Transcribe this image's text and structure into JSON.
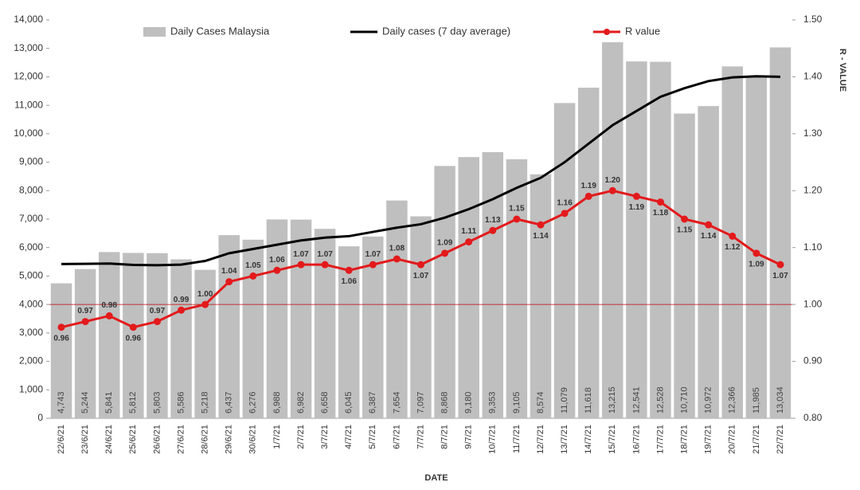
{
  "chart_data": {
    "type": "bar-line",
    "x_label": "DATE",
    "y2_label": "R - VALUE",
    "categories": [
      "22/6/21",
      "23/6/21",
      "24/6/21",
      "25/6/21",
      "26/6/21",
      "27/6/21",
      "28/6/21",
      "29/6/21",
      "30/6/21",
      "1/7/21",
      "2/7/21",
      "3/7/21",
      "4/7/21",
      "5/7/21",
      "6/7/21",
      "7/7/21",
      "8/7/21",
      "9/7/21",
      "10/7/21",
      "11/7/21",
      "12/7/21",
      "13/7/21",
      "14/7/21",
      "15/7/21",
      "16/7/21",
      "17/7/21",
      "18/7/21",
      "19/7/21",
      "20/7/21",
      "21/7/21",
      "22/7/21"
    ],
    "series": [
      {
        "name": "Daily Cases Malaysia",
        "kind": "bar",
        "color": "#bfbfbf",
        "values": [
          4743,
          5244,
          5841,
          5812,
          5803,
          5586,
          5218,
          6437,
          6276,
          6988,
          6982,
          6658,
          6045,
          6387,
          7654,
          7097,
          8868,
          9180,
          9353,
          9105,
          8574,
          11079,
          11618,
          13215,
          12541,
          12528,
          10710,
          10972,
          12366,
          11985,
          13034
        ],
        "value_labels": [
          "4,743",
          "5,244",
          "5,841",
          "5,812",
          "5,803",
          "5,586",
          "5,218",
          "6,437",
          "6,276",
          "6,988",
          "6,982",
          "6,658",
          "6,045",
          "6,387",
          "7,654",
          "7,097",
          "8,868",
          "9,180",
          "9,353",
          "9,105",
          "8,574",
          "11,079",
          "11,618",
          "13,215",
          "12,541",
          "12,528",
          "10,710",
          "10,972",
          "12,366",
          "11,985",
          "13,034"
        ]
      },
      {
        "name": "Daily cases (7 day average)",
        "kind": "line",
        "color": "#000000",
        "values": [
          5420,
          5430,
          5440,
          5390,
          5380,
          5400,
          5530,
          5800,
          5950,
          6100,
          6250,
          6350,
          6400,
          6550,
          6700,
          6820,
          7050,
          7350,
          7700,
          8100,
          8450,
          9000,
          9650,
          10300,
          10800,
          11300,
          11600,
          11850,
          11980,
          12020,
          12000
        ]
      },
      {
        "name": "R value",
        "kind": "line-marker",
        "color": "#e31a1c",
        "axis": "y2",
        "values": [
          0.96,
          0.97,
          0.98,
          0.96,
          0.97,
          0.99,
          1.0,
          1.04,
          1.05,
          1.06,
          1.07,
          1.07,
          1.06,
          1.07,
          1.08,
          1.07,
          1.09,
          1.11,
          1.13,
          1.15,
          1.14,
          1.16,
          1.19,
          1.2,
          1.19,
          1.18,
          1.15,
          1.14,
          1.12,
          1.09,
          1.07
        ],
        "value_labels": [
          "0.96",
          "0.97",
          "0.98",
          "0.96",
          "0.97",
          "0.99",
          "1.00",
          "1.04",
          "1.05",
          "1.06",
          "1.07",
          "1.07",
          "1.06",
          "1.07",
          "1.08",
          "1.07",
          "1.09",
          "1.11",
          "1.13",
          "1.15",
          "1.14",
          "1.16",
          "1.19",
          "1.20",
          "1.19",
          "1.18",
          "1.15",
          "1.14",
          "1.12",
          "1.09",
          "1.07"
        ]
      }
    ],
    "ylim": [
      0,
      14000
    ],
    "yticks": [
      0,
      {
        "value": 1000,
        "label": "1,000"
      },
      {
        "value": 2000,
        "label": "2,000"
      },
      {
        "value": 3000,
        "label": "3,000"
      },
      {
        "value": 4000,
        "label": "4,000"
      },
      {
        "value": 5000,
        "label": "5,000"
      },
      {
        "value": 6000,
        "label": "6,000"
      },
      {
        "value": 7000,
        "label": "7,000"
      },
      {
        "value": 8000,
        "label": "8,000"
      },
      {
        "value": 9000,
        "label": "9,000"
      },
      {
        "value": 10000,
        "label": "10,000"
      },
      {
        "value": 11000,
        "label": "11,000"
      },
      {
        "value": 12000,
        "label": "12,000"
      },
      {
        "value": 13000,
        "label": "13,000"
      },
      {
        "value": 14000,
        "label": "14,000"
      }
    ],
    "y2lim": [
      0.8,
      1.5
    ],
    "y2ticks": [
      {
        "value": 0.8,
        "label": "0.80"
      },
      {
        "value": 0.9,
        "label": "0.90"
      },
      {
        "value": 1.0,
        "label": "1.00"
      },
      {
        "value": 1.1,
        "label": "1.10"
      },
      {
        "value": 1.2,
        "label": "1.20"
      },
      {
        "value": 1.3,
        "label": "1.30"
      },
      {
        "value": 1.4,
        "label": "1.40"
      },
      {
        "value": 1.5,
        "label": "1.50"
      }
    ],
    "reference_line": {
      "axis": "y2",
      "value": 1.0,
      "color": "#c00000"
    },
    "legend": "top"
  }
}
